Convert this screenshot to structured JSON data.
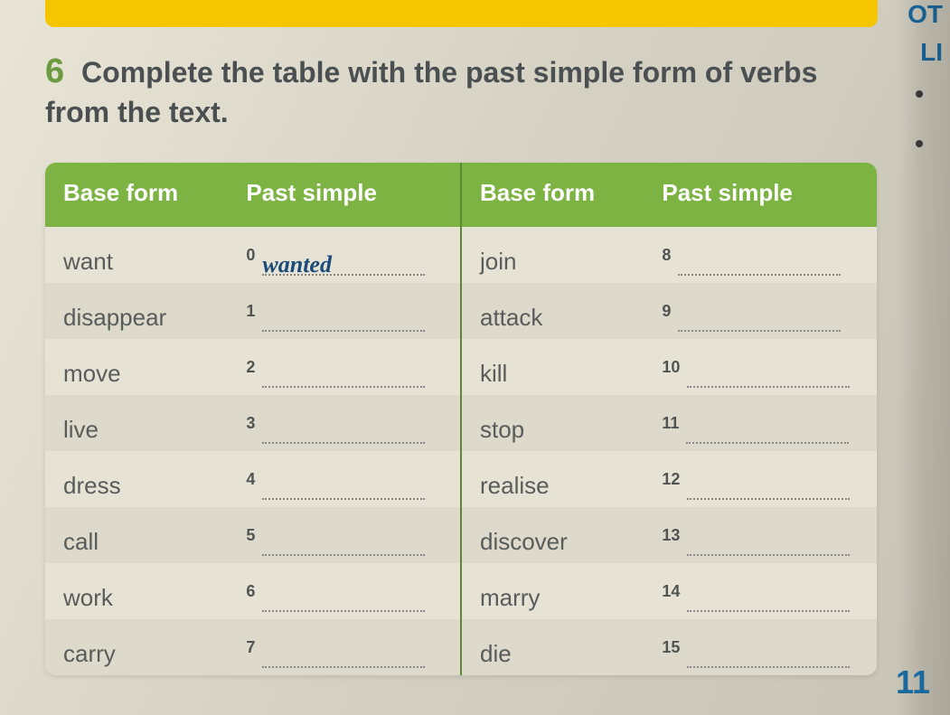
{
  "colors": {
    "header_bg": "#7cb342",
    "header_text": "#ffffff",
    "exercise_num": "#6b9a3f",
    "body_text": "#4a5052",
    "cell_text": "#585c5a",
    "handwritten": "#1a4a7a",
    "page_num": "#1a6aa0",
    "yellow_bar": "#f5c500",
    "row_bg": "#e6e3d5",
    "row_alt_bg": "#ddd9cb"
  },
  "fonts": {
    "instruction_size": 32,
    "header_size": 26,
    "cell_size": 26,
    "number_size": 18,
    "page_num_size": 36
  },
  "exercise_number": "6",
  "instruction_text": "Complete the table with the past simple form of verbs from the text.",
  "headers": {
    "base_form": "Base form",
    "past_simple": "Past simple"
  },
  "rows": [
    {
      "base1": "want",
      "num1": "0",
      "ans1": "wanted",
      "base2": "join",
      "num2": "8",
      "ans2": ""
    },
    {
      "base1": "disappear",
      "num1": "1",
      "ans1": "",
      "base2": "attack",
      "num2": "9",
      "ans2": ""
    },
    {
      "base1": "move",
      "num1": "2",
      "ans1": "",
      "base2": "kill",
      "num2": "10",
      "ans2": ""
    },
    {
      "base1": "live",
      "num1": "3",
      "ans1": "",
      "base2": "stop",
      "num2": "11",
      "ans2": ""
    },
    {
      "base1": "dress",
      "num1": "4",
      "ans1": "",
      "base2": "realise",
      "num2": "12",
      "ans2": ""
    },
    {
      "base1": "call",
      "num1": "5",
      "ans1": "",
      "base2": "discover",
      "num2": "13",
      "ans2": ""
    },
    {
      "base1": "work",
      "num1": "6",
      "ans1": "",
      "base2": "marry",
      "num2": "14",
      "ans2": ""
    },
    {
      "base1": "carry",
      "num1": "7",
      "ans1": "",
      "base2": "die",
      "num2": "15",
      "ans2": ""
    }
  ],
  "page_number": "11",
  "side_text_1": "OT",
  "side_text_2": "LI"
}
